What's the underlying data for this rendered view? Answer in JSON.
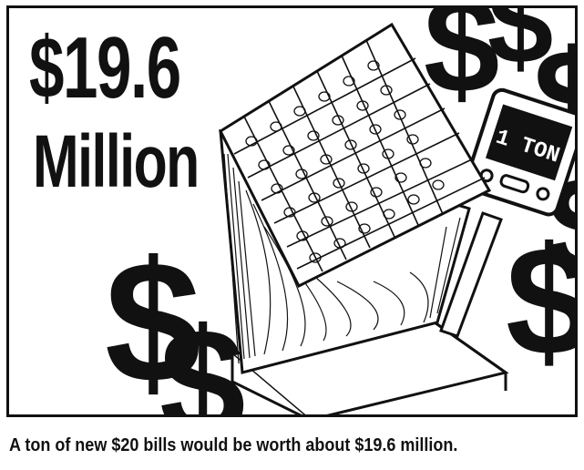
{
  "headline": {
    "amount": "$19.6",
    "unit": "Million"
  },
  "illustration": {
    "subject": "stack-of-bills-on-scale",
    "decoration": "dollar-sign-icons",
    "scale_display": "1 TON",
    "ink_color": "#111111",
    "paper_color": "#ffffff"
  },
  "caption": "A ton of new $20 bills would be worth about $19.6 million."
}
